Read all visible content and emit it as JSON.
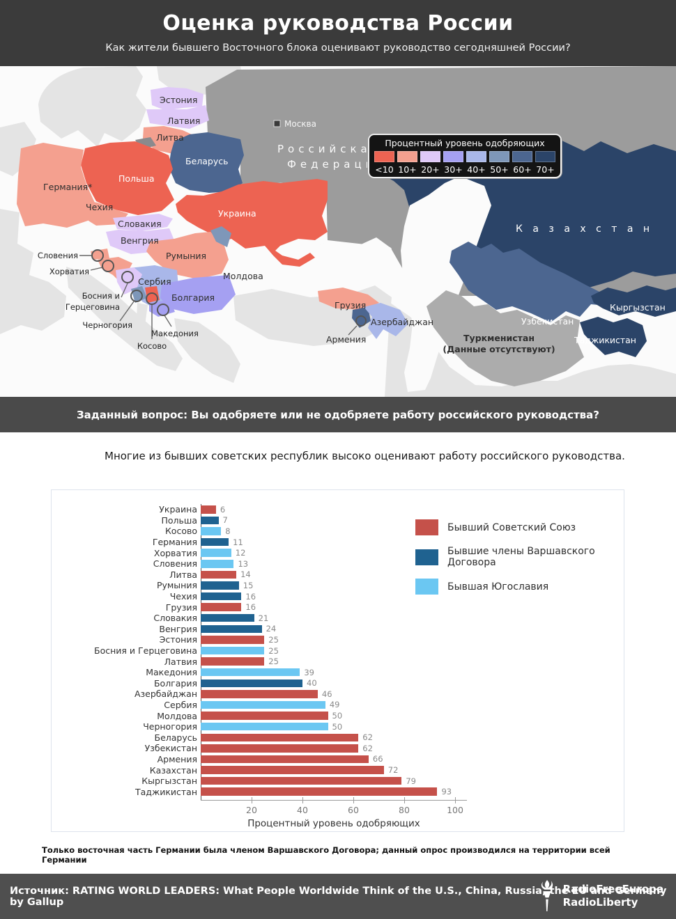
{
  "palette": {
    "b0": "#ED6352",
    "b10": "#F4A08F",
    "b20": "#DFC9F8",
    "b30": "#A5A0F2",
    "b40": "#A9B7E9",
    "b50": "#7E97B9",
    "b60": "#4C6690",
    "b70": "#2B4468",
    "ussr": "#C5514A",
    "warsaw": "#1F6290",
    "yugoslavia": "#6BC7F2",
    "russia": "#9C9C9C",
    "land": "#E4E4E4",
    "no_data": "#ACACAC",
    "sea": "#FBFBFB",
    "kaliningrad": "#8A8A8D"
  },
  "header": {
    "title": "Оценка руководства России",
    "subtitle": "Как жители бывшего Восточного блока оценивают руководство сегодняшней России?"
  },
  "map": {
    "legend": {
      "title": "Процентный уровень одобряющих",
      "buckets": [
        {
          "label": "<10",
          "color": "#ED6352"
        },
        {
          "label": "10+",
          "color": "#F4A08F"
        },
        {
          "label": "20+",
          "color": "#DFC9F8"
        },
        {
          "label": "30+",
          "color": "#A5A0F2"
        },
        {
          "label": "40+",
          "color": "#A9B7E9"
        },
        {
          "label": "50+",
          "color": "#7E97B9"
        },
        {
          "label": "60+",
          "color": "#4C6690"
        },
        {
          "label": "70+",
          "color": "#2B4468"
        }
      ]
    },
    "labels": {
      "estonia": "Эстония",
      "latvia": "Латвия",
      "lithuania": "Литва",
      "belarus": "Беларусь",
      "poland": "Польша",
      "germany": "Германия*",
      "czech": "Чехия",
      "slovakia": "Словакия",
      "hungary": "Венгрия",
      "ukraine": "Украина",
      "romania": "Румыния",
      "moldova": "Молдова",
      "serbia": "Сербия",
      "bulgaria": "Болгария",
      "slovenia": "Словения",
      "croatia": "Хорватия",
      "bosnia_1": "Босния и",
      "bosnia_2": "Герцеговина",
      "montenegro": "Черногория",
      "kosovo": "Косово",
      "macedonia": "Македония",
      "georgia": "Грузия",
      "armenia": "Армения",
      "azerbaijan": "Азербайджан",
      "kazakhstan": "К а з а х с т а н",
      "uzbekistan": "Узбекистан",
      "turkmenistan_1": "Туркменистан",
      "turkmenistan_2": "(Данные отсутствуют)",
      "kyrgyzstan": "Кыргызстан",
      "tajikistan": "Таджикистан",
      "moscow": "Москва",
      "rf_1": "Российская",
      "rf_2": "Федерация"
    }
  },
  "question_band": {
    "text": "Заданный вопрос: Вы одобряете или не одобряете работу российского руководства?"
  },
  "chart_intro": "Многие из бывших советских республик высоко оценивают работу российского руководства.",
  "chart_data": {
    "type": "bar",
    "orientation": "horizontal",
    "xlabel": "Процентный уровень одобряющих",
    "xlim": [
      0,
      100
    ],
    "xticks": [
      20,
      40,
      60,
      80,
      100
    ],
    "rows": [
      {
        "label": "Украина",
        "value": 6,
        "group": "ussr"
      },
      {
        "label": "Польша",
        "value": 7,
        "group": "warsaw"
      },
      {
        "label": "Косово",
        "value": 8,
        "group": "yugoslavia"
      },
      {
        "label": "Германия",
        "value": 11,
        "group": "warsaw"
      },
      {
        "label": "Хорватия",
        "value": 12,
        "group": "yugoslavia"
      },
      {
        "label": "Словения",
        "value": 13,
        "group": "yugoslavia"
      },
      {
        "label": "Литва",
        "value": 14,
        "group": "ussr"
      },
      {
        "label": "Румыния",
        "value": 15,
        "group": "warsaw"
      },
      {
        "label": "Чехия",
        "value": 16,
        "group": "warsaw"
      },
      {
        "label": "Грузия",
        "value": 16,
        "group": "ussr"
      },
      {
        "label": "Словакия",
        "value": 21,
        "group": "warsaw"
      },
      {
        "label": "Венгрия",
        "value": 24,
        "group": "warsaw"
      },
      {
        "label": "Эстония",
        "value": 25,
        "group": "ussr"
      },
      {
        "label": "Босния и Герцеговина",
        "value": 25,
        "group": "yugoslavia"
      },
      {
        "label": "Латвия",
        "value": 25,
        "group": "ussr"
      },
      {
        "label": "Македония",
        "value": 39,
        "group": "yugoslavia"
      },
      {
        "label": "Болгария",
        "value": 40,
        "group": "warsaw"
      },
      {
        "label": "Азербайджан",
        "value": 46,
        "group": "ussr"
      },
      {
        "label": "Сербия",
        "value": 49,
        "group": "yugoslavia"
      },
      {
        "label": "Молдова",
        "value": 50,
        "group": "ussr"
      },
      {
        "label": "Черногория",
        "value": 50,
        "group": "yugoslavia"
      },
      {
        "label": "Беларусь",
        "value": 62,
        "group": "ussr"
      },
      {
        "label": "Узбекистан",
        "value": 62,
        "group": "ussr"
      },
      {
        "label": "Армения",
        "value": 66,
        "group": "ussr"
      },
      {
        "label": "Казахстан",
        "value": 72,
        "group": "ussr"
      },
      {
        "label": "Кыргызстан",
        "value": 79,
        "group": "ussr"
      },
      {
        "label": "Таджикистан",
        "value": 93,
        "group": "ussr"
      }
    ],
    "legend": [
      {
        "label": "Бывший Советский Союз",
        "group": "ussr"
      },
      {
        "label": "Бывшие члены Варшавского Договора",
        "group": "warsaw"
      },
      {
        "label": "Бывшая Югославия",
        "group": "yugoslavia"
      }
    ],
    "legend_position": "upper right",
    "grid": false
  },
  "footnote": "Только восточная часть Германии была членом Варшавского Договора; данный опрос производился на территории всей Германии",
  "footer": {
    "source": "Источник: RATING WORLD LEADERS: What People Worldwide Think of the U.S., China, Russia, the EU and Germany by Gallup",
    "logo_line1": "RadioFreeEurope",
    "logo_line2": "RadioLiberty"
  }
}
